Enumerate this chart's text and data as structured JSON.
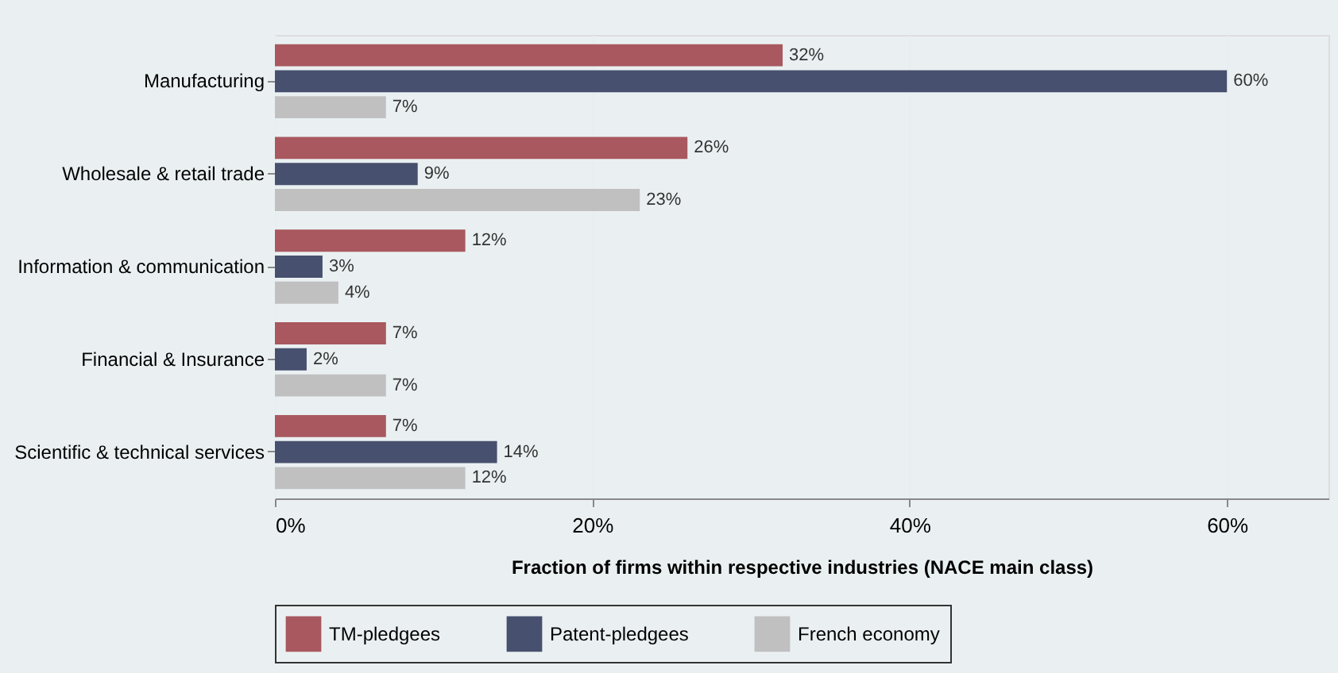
{
  "chart_data": {
    "type": "bar",
    "orientation": "horizontal",
    "xlabel": "Fraction of firms within respective industries (NACE main class)",
    "categories": [
      "Manufacturing",
      "Wholesale & retail trade",
      "Information & communication",
      "Financial & Insurance",
      "Scientific & technical services"
    ],
    "series": [
      {
        "name": "TM-pledgees",
        "color": "#a8585e",
        "values": [
          32,
          26,
          12,
          7,
          7
        ],
        "value_labels": [
          "32%",
          "26%",
          "12%",
          "7%",
          "7%"
        ]
      },
      {
        "name": "Patent-pledgees",
        "color": "#47506e",
        "values": [
          60,
          9,
          3,
          2,
          14
        ],
        "value_labels": [
          "60%",
          "9%",
          "3%",
          "2%",
          "14%"
        ]
      },
      {
        "name": "French economy",
        "color": "#c0c0c0",
        "values": [
          7,
          23,
          4,
          7,
          12
        ],
        "value_labels": [
          "7%",
          "23%",
          "4%",
          "7%",
          "12%"
        ]
      }
    ],
    "xlim": [
      0,
      66.4
    ],
    "xticks": [
      {
        "value": 0,
        "label": "0%"
      },
      {
        "value": 20,
        "label": "20%"
      },
      {
        "value": 40,
        "label": "40%"
      },
      {
        "value": 60,
        "label": "60%"
      }
    ],
    "grid": "x",
    "legend": "bottom"
  }
}
